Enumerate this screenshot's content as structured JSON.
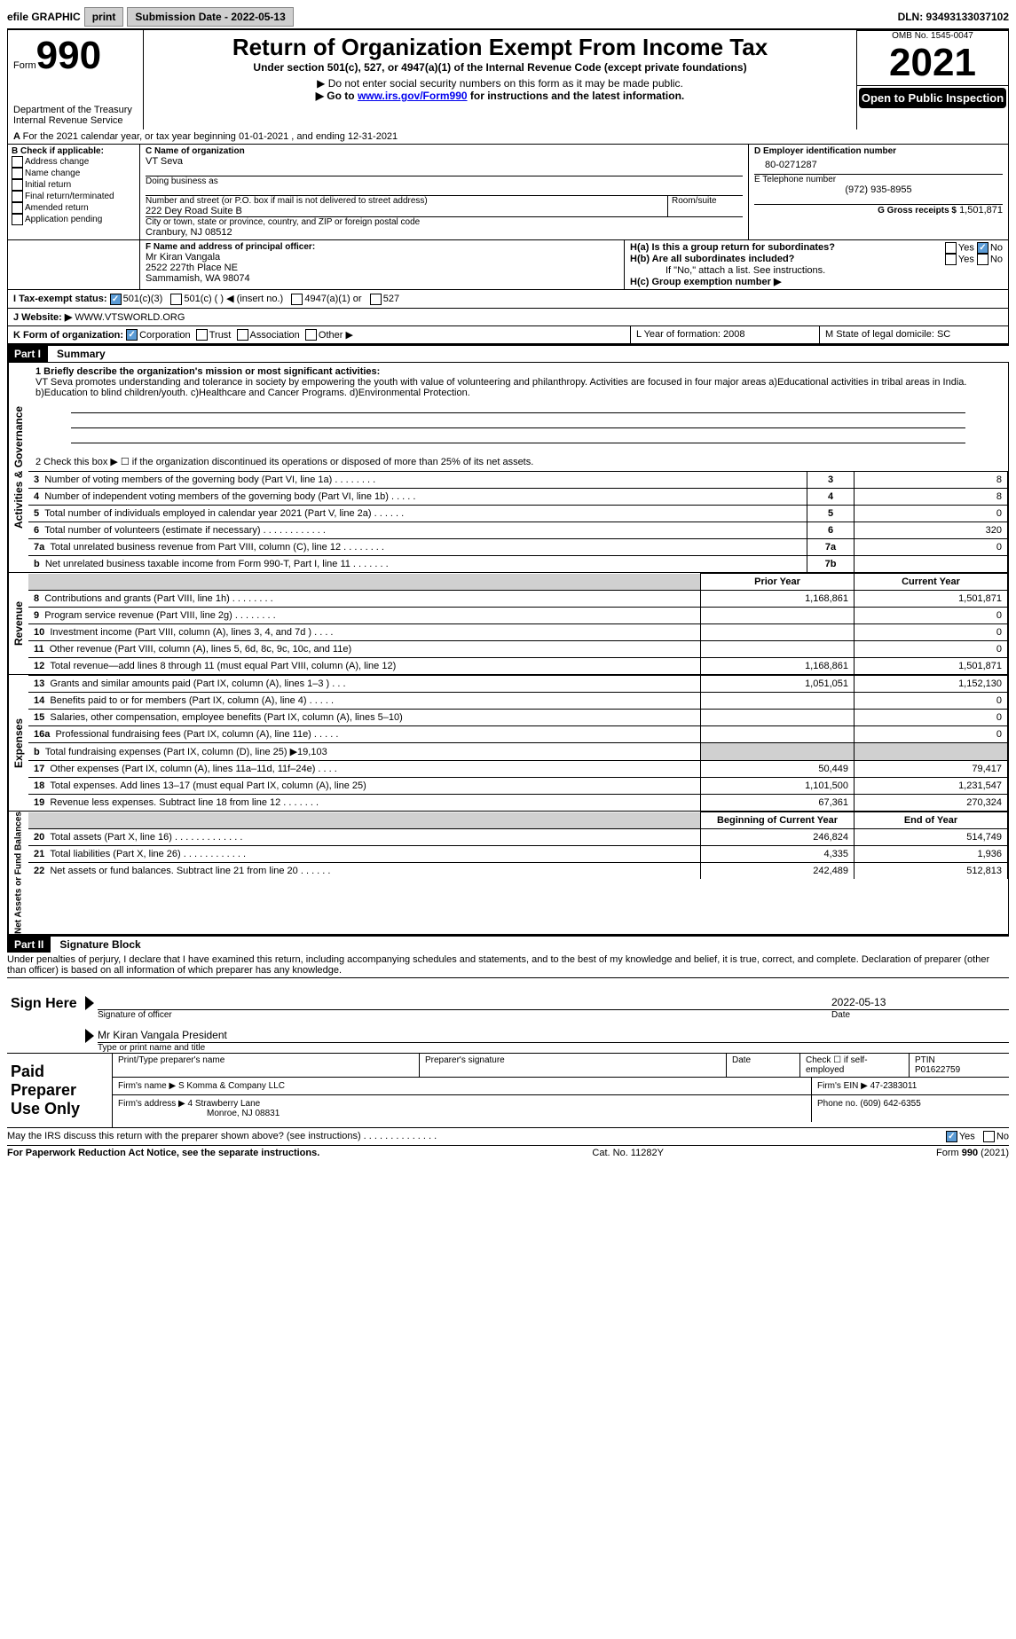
{
  "top_bar": {
    "efile_label": "efile GRAPHIC",
    "print_btn": "print",
    "submission_label": "Submission Date - 2022-05-13",
    "dln_label": "DLN: 93493133037102"
  },
  "header": {
    "form_prefix": "Form",
    "form_number": "990",
    "title": "Return of Organization Exempt From Income Tax",
    "subtitle": "Under section 501(c), 527, or 4947(a)(1) of the Internal Revenue Code (except private foundations)",
    "note1": "▶ Do not enter social security numbers on this form as it may be made public.",
    "note2_prefix": "▶ Go to ",
    "note2_link": "www.irs.gov/Form990",
    "note2_suffix": " for instructions and the latest information.",
    "dept": "Department of the Treasury",
    "irs": "Internal Revenue Service",
    "omb": "OMB No. 1545-0047",
    "year": "2021",
    "open": "Open to Public Inspection"
  },
  "lineA": {
    "text": "For the 2021 calendar year, or tax year beginning 01-01-2021        , and ending 12-31-2021"
  },
  "sectionB": {
    "label": "B Check if applicable:",
    "addr": "Address change",
    "name": "Name change",
    "init": "Initial return",
    "final": "Final return/terminated",
    "amend": "Amended return",
    "app": "Application pending"
  },
  "sectionC": {
    "c_label": "C Name of organization",
    "org_name": "VT Seva",
    "dba_label": "Doing business as",
    "addr_label": "Number and street (or P.O. box if mail is not delivered to street address)",
    "room_label": "Room/suite",
    "addr": "222 Dey Road Suite B",
    "city_label": "City or town, state or province, country, and ZIP or foreign postal code",
    "city": "Cranbury, NJ  08512",
    "f_label": "F Name and address of principal officer:",
    "f_name": "Mr Kiran Vangala",
    "f_addr1": "2522 227th Place NE",
    "f_addr2": "Sammamish, WA  98074"
  },
  "sectionD": {
    "d_label": "D Employer identification number",
    "ein": "80-0271287",
    "e_label": "E Telephone number",
    "phone": "(972) 935-8955",
    "g_label": "G Gross receipts $",
    "g_val": "1,501,871"
  },
  "sectionH": {
    "ha": "H(a)  Is this a group return for subordinates?",
    "hb": "H(b)  Are all subordinates included?",
    "hb_note": "If \"No,\" attach a list. See instructions.",
    "hc": "H(c)  Group exemption number ▶",
    "yes": "Yes",
    "no": "No"
  },
  "sectionI": {
    "label": "I   Tax-exempt status:",
    "o1": "501(c)(3)",
    "o2": "501(c) (    ) ◀ (insert no.)",
    "o3": "4947(a)(1) or",
    "o4": "527"
  },
  "sectionJ": {
    "label": "J   Website: ▶",
    "val": "WWW.VTSWORLD.ORG"
  },
  "sectionK": {
    "label": "K Form of organization:",
    "o1": "Corporation",
    "o2": "Trust",
    "o3": "Association",
    "o4": "Other ▶"
  },
  "sectionL": {
    "l": "L Year of formation: 2008",
    "m": "M State of legal domicile: SC"
  },
  "part1": {
    "title": "Part I",
    "summary": "Summary"
  },
  "mission": {
    "q1": "1 Briefly describe the organization's mission or most significant activities:",
    "text": "VT Seva promotes understanding and tolerance in society by empowering the youth with value of volunteering and philanthropy. Activities are focused in four major areas a)Educational activities in tribal areas in India. b)Education to blind children/youth. c)Healthcare and Cancer Programs. d)Environmental Protection.",
    "q2": "2   Check this box ▶ ☐  if the organization discontinued its operations or disposed of more than 25% of its net assets."
  },
  "governance": {
    "side": "Activities & Governance",
    "rows": [
      {
        "n": "3",
        "label": "Number of voting members of the governing body (Part VI, line 1a)   .     .     .     .     .     .     .     .",
        "cell": "3",
        "val": "8"
      },
      {
        "n": "4",
        "label": "Number of independent voting members of the governing body (Part VI, line 1b)   .     .     .     .     .",
        "cell": "4",
        "val": "8"
      },
      {
        "n": "5",
        "label": "Total number of individuals employed in calendar year 2021 (Part V, line 2a)   .     .     .     .     .     .",
        "cell": "5",
        "val": "0"
      },
      {
        "n": "6",
        "label": "Total number of volunteers (estimate if necessary)    .     .     .     .     .     .     .     .     .     .     .     .",
        "cell": "6",
        "val": "320"
      },
      {
        "n": "7a",
        "label": "Total unrelated business revenue from Part VIII, column (C), line 12    .     .     .     .     .     .     .     .",
        "cell": "7a",
        "val": "0"
      },
      {
        "n": "  b",
        "label": "Net unrelated business taxable income from Form 990-T, Part I, line 11   .     .     .     .     .     .     .",
        "cell": "7b",
        "val": ""
      }
    ]
  },
  "revenue": {
    "side": "Revenue",
    "header_prior": "Prior Year",
    "header_current": "Current Year",
    "rows": [
      {
        "n": "8",
        "label": "Contributions and grants (Part VIII, line 1h)    .     .     .     .     .     .     .     .",
        "prior": "1,168,861",
        "curr": "1,501,871"
      },
      {
        "n": "9",
        "label": "Program service revenue (Part VIII, line 2g)    .     .     .     .     .     .     .     .",
        "prior": "",
        "curr": "0"
      },
      {
        "n": "10",
        "label": "Investment income (Part VIII, column (A), lines 3, 4, and 7d )    .     .     .     .",
        "prior": "",
        "curr": "0"
      },
      {
        "n": "11",
        "label": "Other revenue (Part VIII, column (A), lines 5, 6d, 8c, 9c, 10c, and 11e)",
        "prior": "",
        "curr": "0"
      },
      {
        "n": "12",
        "label": "Total revenue—add lines 8 through 11 (must equal Part VIII, column (A), line 12)",
        "prior": "1,168,861",
        "curr": "1,501,871"
      }
    ]
  },
  "expenses": {
    "side": "Expenses",
    "rows": [
      {
        "n": "13",
        "label": "Grants and similar amounts paid (Part IX, column (A), lines 1–3 )   .     .     .",
        "prior": "1,051,051",
        "curr": "1,152,130"
      },
      {
        "n": "14",
        "label": "Benefits paid to or for members (Part IX, column (A), line 4)   .     .     .     .     .",
        "prior": "",
        "curr": "0"
      },
      {
        "n": "15",
        "label": "Salaries, other compensation, employee benefits (Part IX, column (A), lines 5–10)",
        "prior": "",
        "curr": "0"
      },
      {
        "n": "16a",
        "label": "Professional fundraising fees (Part IX, column (A), line 11e)   .     .     .     .     .",
        "prior": "",
        "curr": "0"
      },
      {
        "n": "  b",
        "label": "Total fundraising expenses (Part IX, column (D), line 25) ▶19,103",
        "prior": "—gray—",
        "curr": "—gray—"
      },
      {
        "n": "17",
        "label": "Other expenses (Part IX, column (A), lines 11a–11d, 11f–24e)   .     .     .     .",
        "prior": "50,449",
        "curr": "79,417"
      },
      {
        "n": "18",
        "label": "Total expenses. Add lines 13–17 (must equal Part IX, column (A), line 25)",
        "prior": "1,101,500",
        "curr": "1,231,547"
      },
      {
        "n": "19",
        "label": "Revenue less expenses. Subtract line 18 from line 12  .     .     .     .     .     .     .",
        "prior": "67,361",
        "curr": "270,324"
      }
    ]
  },
  "netassets": {
    "side": "Net Assets or Fund Balances",
    "header_begin": "Beginning of Current Year",
    "header_end": "End of Year",
    "rows": [
      {
        "n": "20",
        "label": "Total assets (Part X, line 16)   .     .     .     .     .     .     .     .     .     .     .     .     .",
        "prior": "246,824",
        "curr": "514,749"
      },
      {
        "n": "21",
        "label": "Total liabilities (Part X, line 26)    .     .     .     .     .     .     .     .     .     .     .     .",
        "prior": "4,335",
        "curr": "1,936"
      },
      {
        "n": "22",
        "label": "Net assets or fund balances. Subtract line 21 from line 20   .     .     .     .     .     .",
        "prior": "242,489",
        "curr": "512,813"
      }
    ]
  },
  "part2": {
    "title": "Part II",
    "sig": "Signature Block",
    "decl": "Under penalties of perjury, I declare that I have examined this return, including accompanying schedules and statements, and to the best of my knowledge and belief, it is true, correct, and complete. Declaration of preparer (other than officer) is based on all information of which preparer has any knowledge."
  },
  "sign_here": {
    "label": "Sign Here",
    "sig_of": "Signature of officer",
    "date": "Date",
    "date_val": "2022-05-13",
    "name": "Mr Kiran Vangala  President",
    "name_label": "Type or print name and title"
  },
  "paid_prep": {
    "label": "Paid Preparer Use Only",
    "h_name": "Print/Type preparer's name",
    "h_sig": "Preparer's signature",
    "h_date": "Date",
    "h_check": "Check ☐ if self-employed",
    "h_ptin": "PTIN",
    "ptin_val": "P01622759",
    "firm_name_label": "Firm's name     ▶",
    "firm_name": "S Komma & Company LLC",
    "firm_ein_label": "Firm's EIN ▶",
    "firm_ein": "47-2383011",
    "firm_addr_label": "Firm's address ▶",
    "firm_addr1": "4 Strawberry Lane",
    "firm_addr2": "Monroe, NJ  08831",
    "phone_label": "Phone no.",
    "phone": "(609) 642-6355"
  },
  "discuss": {
    "q": "May the IRS discuss this return with the preparer shown above? (see instructions)    .     .     .     .     .     .     .     .     .     .     .     .     .     .",
    "yes": "Yes",
    "no": "No"
  },
  "footer": {
    "left": "For Paperwork Reduction Act Notice, see the separate instructions.",
    "mid": "Cat. No. 11282Y",
    "right": "Form 990 (2021)"
  }
}
